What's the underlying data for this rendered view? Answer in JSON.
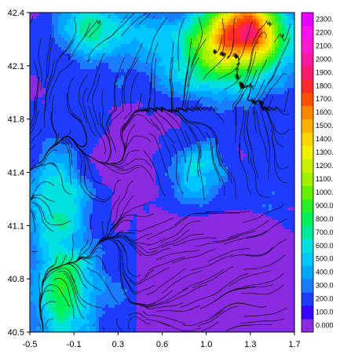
{
  "chart_data": {
    "type": "heatmap",
    "title": "",
    "xlabel": "",
    "ylabel": "",
    "xlim": [
      -0.5,
      1.7
    ],
    "ylim": [
      40.5,
      42.4
    ],
    "x_ticks": [
      "-0.5",
      "-0.1",
      "0.3",
      "0.6",
      "1.0",
      "1.3",
      "1.7"
    ],
    "y_ticks": [
      "40.5",
      "40.8",
      "41.1",
      "41.4",
      "41.8",
      "42.1",
      "42.4"
    ],
    "overlay": "streamlines",
    "grid": false,
    "colorbar": {
      "position": "right",
      "levels": [
        "0.000",
        "100.0",
        "200.0",
        "300.0",
        "400.0",
        "500.0",
        "600.0",
        "700.0",
        "800.0",
        "900.0",
        "1000.",
        "1100.",
        "1200.",
        "1300.",
        "1400.",
        "1500.",
        "1600.",
        "1700.",
        "1800.",
        "1900.",
        "2000.",
        "2100.",
        "2200.",
        "2300."
      ],
      "colors": [
        "#8a2be2",
        "#3a00ff",
        "#1e3cff",
        "#1a7dff",
        "#00a6ff",
        "#00c8ff",
        "#00e0e0",
        "#00e89a",
        "#00f05a",
        "#28f028",
        "#64f000",
        "#a0f000",
        "#c8f000",
        "#f0f000",
        "#ffd700",
        "#ffb000",
        "#ff8800",
        "#ff5000",
        "#ff2a2a",
        "#ff1a6e",
        "#ff1aa0",
        "#ff1ad0",
        "#ff10f0",
        "#e600ff"
      ]
    }
  }
}
